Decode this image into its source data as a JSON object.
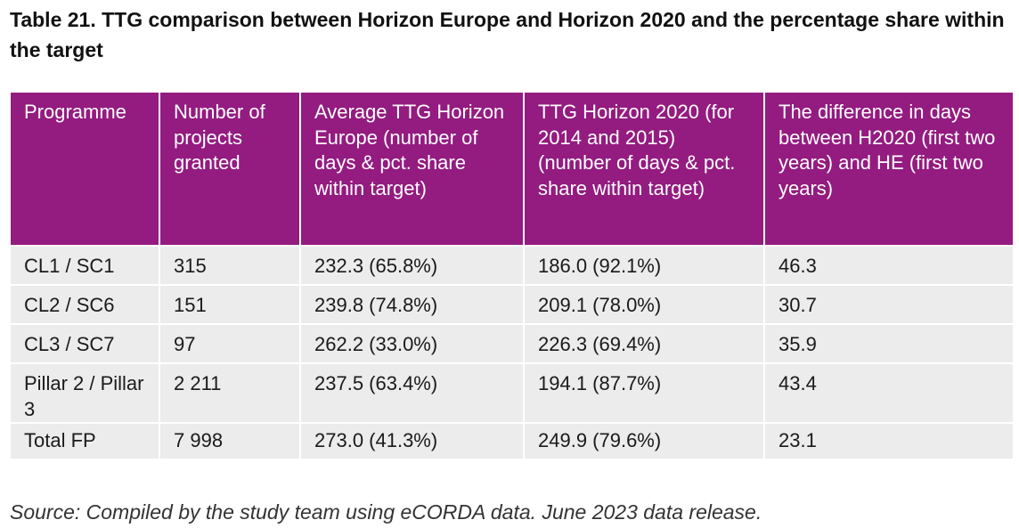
{
  "caption": "Table 21. TTG comparison between Horizon Europe and Horizon 2020 and the percentage share within the target",
  "table": {
    "headers": [
      "Programme",
      "Number of projects granted",
      "Average TTG Horizon Europe (number of days & pct. share within target)",
      "TTG Horizon 2020 (for 2014 and 2015) (number of days & pct. share within target)",
      "The difference in days between H2020 (first two years) and HE (first two years)"
    ],
    "rows": [
      [
        "CL1 / SC1",
        "315",
        "232.3 (65.8%)",
        "186.0 (92.1%)",
        "46.3"
      ],
      [
        "CL2 / SC6",
        "151",
        "239.8 (74.8%)",
        "209.1 (78.0%)",
        "30.7"
      ],
      [
        "CL3 / SC7",
        "97",
        "262.2 (33.0%)",
        "226.3 (69.4%)",
        "35.9"
      ],
      [
        "Pillar 2 / Pillar 3",
        "2 211",
        "237.5 (63.4%)",
        "194.1 (87.7%)",
        "43.4"
      ],
      [
        "Total FP",
        "7 998",
        "273.0 (41.3%)",
        "249.9 (79.6%)",
        "23.1"
      ]
    ]
  },
  "source": "Source: Compiled by the study team using eCORDA data. June 2023 data release.",
  "colors": {
    "header_bg": "#941B80",
    "header_text": "#ffffff",
    "row_bg": "#ececec"
  }
}
